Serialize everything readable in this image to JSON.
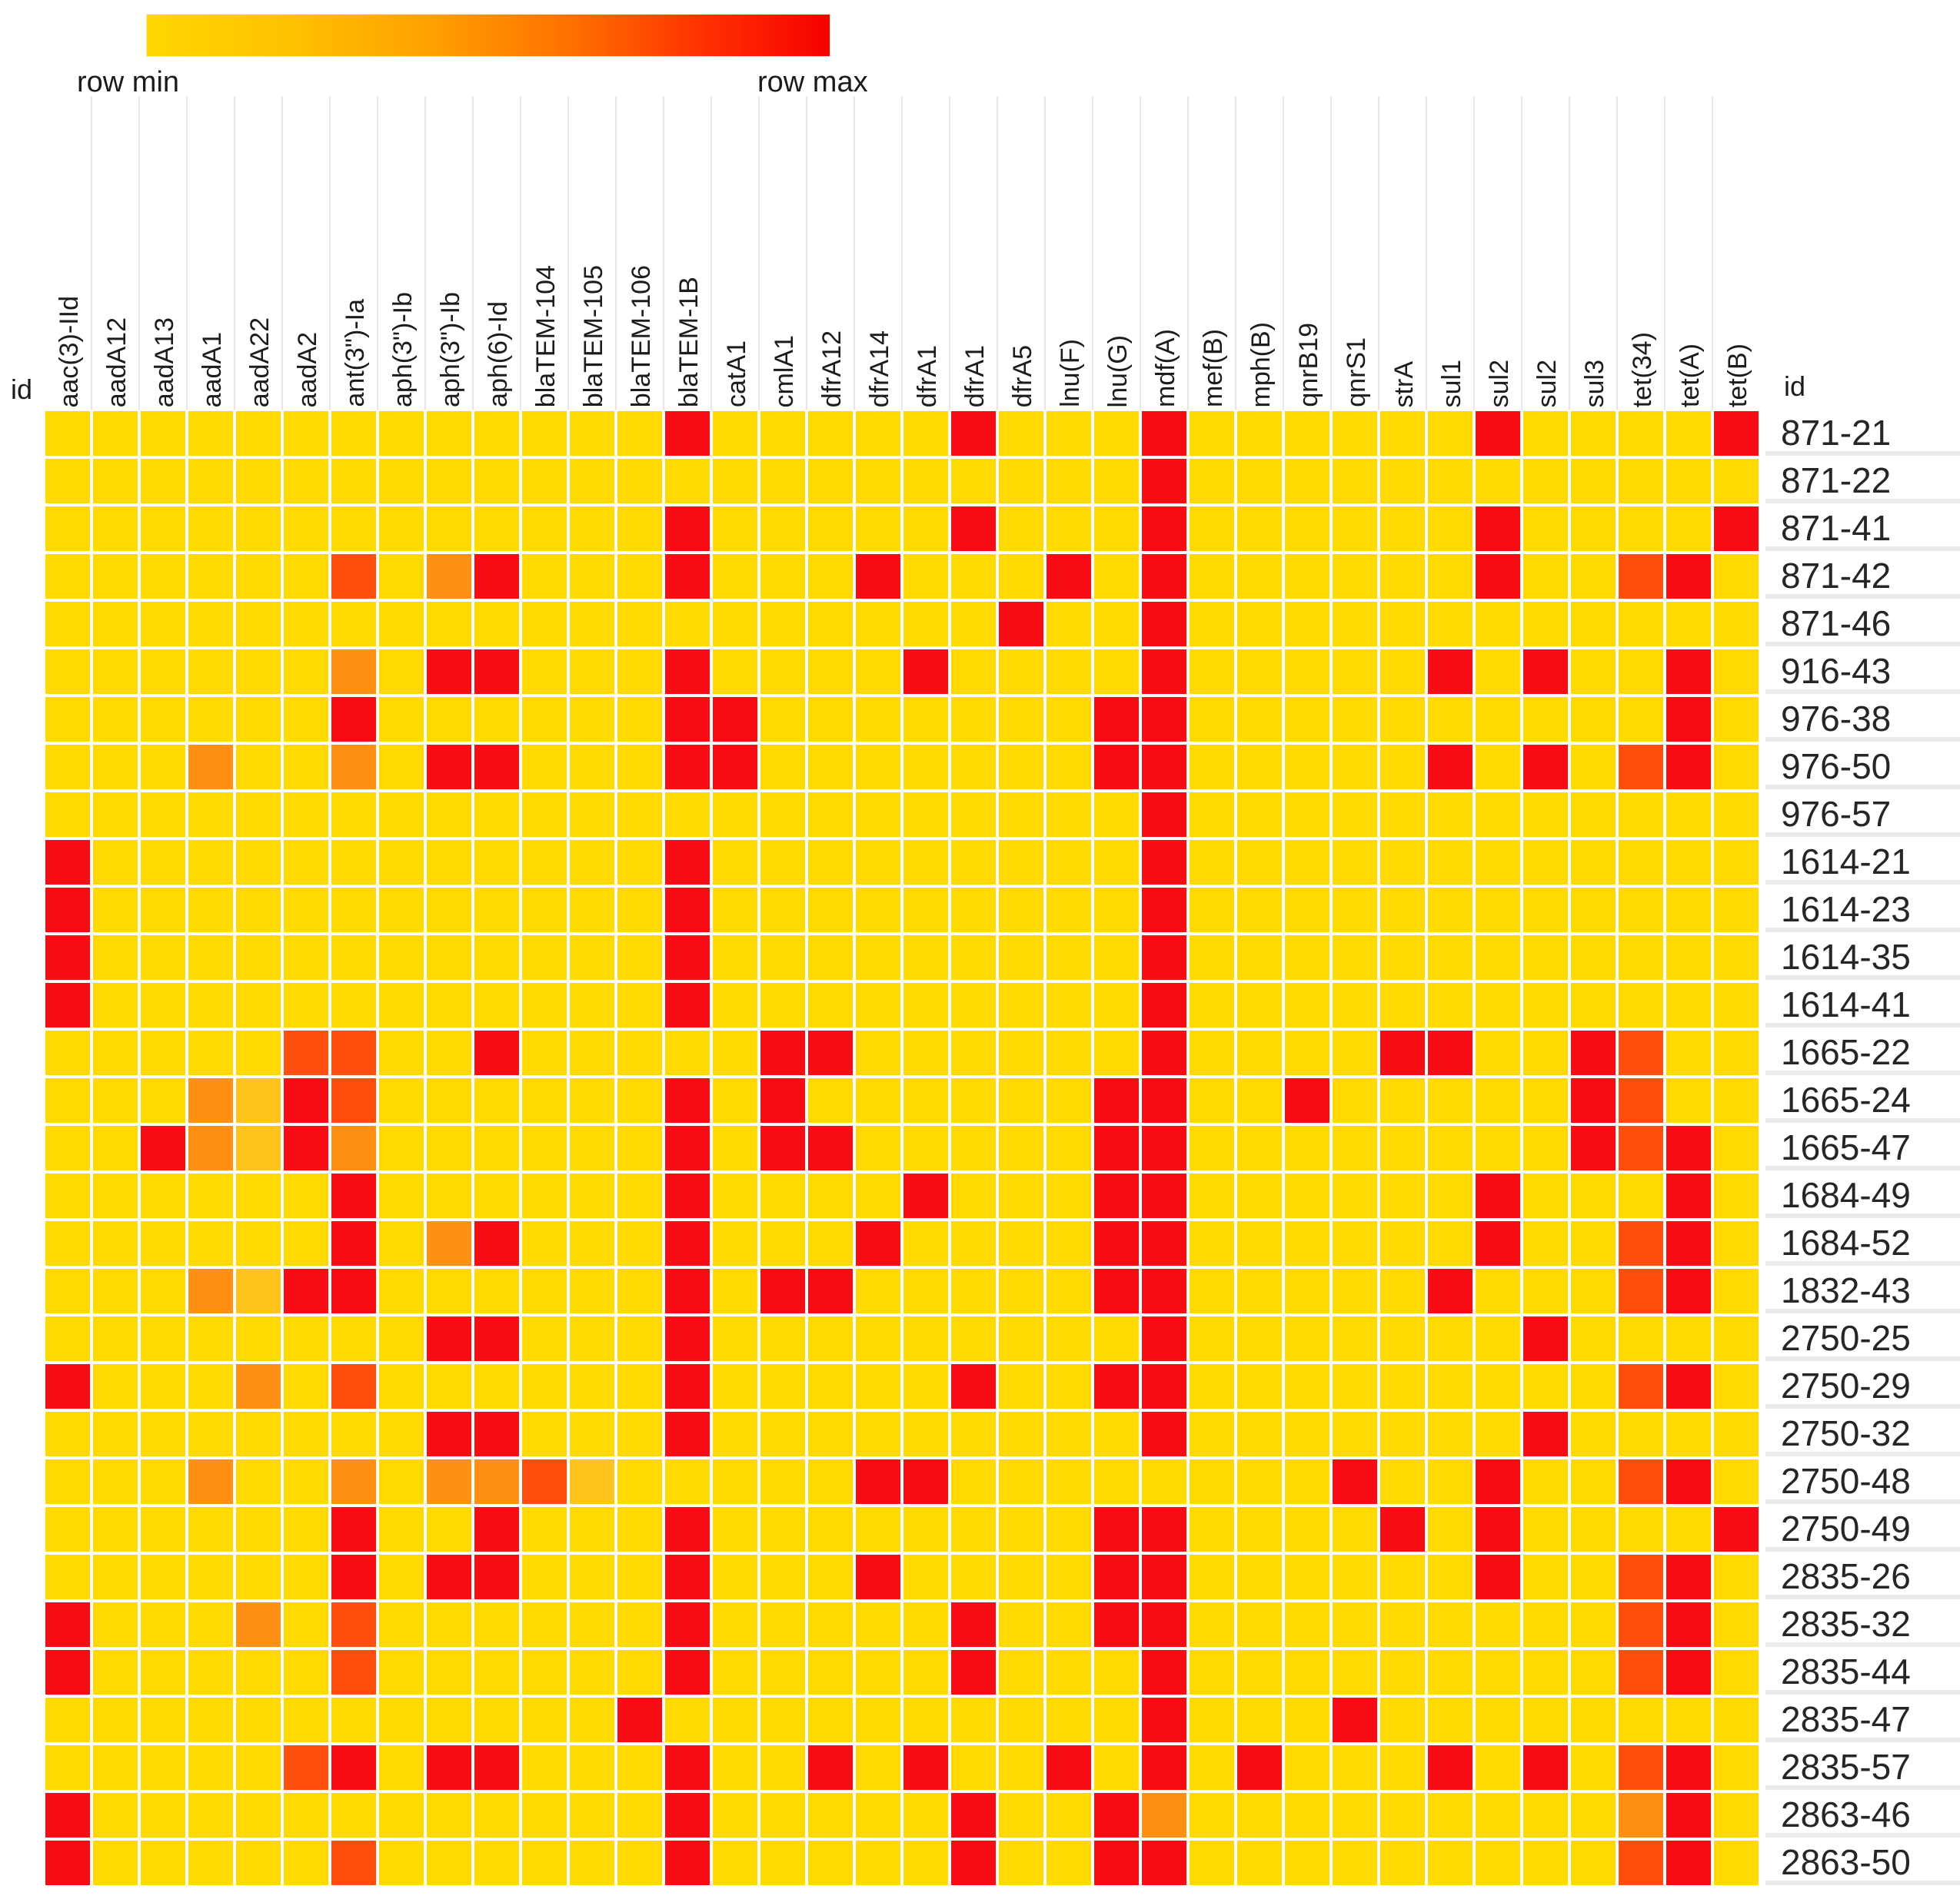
{
  "legend": {
    "min_label": "row min",
    "max_label": "row max"
  },
  "id_label": "id",
  "chart_data": {
    "type": "heatmap",
    "title": "",
    "legend_position": "top-left",
    "color_scale": "row min (yellow) to row max (red)",
    "level_colors": {
      "0": "#FFD901",
      "1": "#FFC41C",
      "2": "#FF9014",
      "3": "#FF4E0D",
      "4": "#F90D15"
    },
    "legend_gradient": [
      "#FFD800",
      "#FFA000",
      "#FF7000",
      "#FF3000",
      "#F60000"
    ],
    "columns": [
      "aac(3)-IId",
      "aadA12",
      "aadA13",
      "aadA1",
      "aadA22",
      "aadA2",
      "ant(3\")-Ia",
      "aph(3\")-Ib",
      "aph(3\")-Ib",
      "aph(6)-Id",
      "blaTEM-104",
      "blaTEM-105",
      "blaTEM-106",
      "blaTEM-1B",
      "catA1",
      "cmlA1",
      "dfrA12",
      "dfrA14",
      "dfrA1",
      "dfrA1",
      "dfrA5",
      "lnu(F)",
      "lnu(G)",
      "mdf(A)",
      "mef(B)",
      "mph(B)",
      "qnrB19",
      "qnrS1",
      "strA",
      "sul1",
      "sul2",
      "sul2",
      "sul3",
      "tet(34)",
      "tet(A)",
      "tet(B)"
    ],
    "rows": [
      "871-21",
      "871-22",
      "871-41",
      "871-42",
      "871-46",
      "916-43",
      "976-38",
      "976-50",
      "976-57",
      "1614-21",
      "1614-23",
      "1614-35",
      "1614-41",
      "1665-22",
      "1665-24",
      "1665-47",
      "1684-49",
      "1684-52",
      "1832-43",
      "2750-25",
      "2750-29",
      "2750-32",
      "2750-48",
      "2750-49",
      "2835-26",
      "2835-32",
      "2835-44",
      "2835-47",
      "2835-57",
      "2863-46",
      "2863-50"
    ],
    "matrix": [
      [
        0,
        0,
        0,
        0,
        0,
        0,
        0,
        0,
        0,
        0,
        0,
        0,
        0,
        4,
        0,
        0,
        0,
        0,
        0,
        4,
        0,
        0,
        0,
        4,
        0,
        0,
        0,
        0,
        0,
        0,
        4,
        0,
        0,
        0,
        0,
        4
      ],
      [
        0,
        0,
        0,
        0,
        0,
        0,
        0,
        0,
        0,
        0,
        0,
        0,
        0,
        0,
        0,
        0,
        0,
        0,
        0,
        0,
        0,
        0,
        0,
        4,
        0,
        0,
        0,
        0,
        0,
        0,
        0,
        0,
        0,
        0,
        0,
        0
      ],
      [
        0,
        0,
        0,
        0,
        0,
        0,
        0,
        0,
        0,
        0,
        0,
        0,
        0,
        4,
        0,
        0,
        0,
        0,
        0,
        4,
        0,
        0,
        0,
        4,
        0,
        0,
        0,
        0,
        0,
        0,
        4,
        0,
        0,
        0,
        0,
        4
      ],
      [
        0,
        0,
        0,
        0,
        0,
        0,
        3,
        0,
        2,
        4,
        0,
        0,
        0,
        4,
        0,
        0,
        0,
        4,
        0,
        0,
        0,
        4,
        0,
        4,
        0,
        0,
        0,
        0,
        0,
        0,
        4,
        0,
        0,
        3,
        4,
        0
      ],
      [
        0,
        0,
        0,
        0,
        0,
        0,
        0,
        0,
        0,
        0,
        0,
        0,
        0,
        0,
        0,
        0,
        0,
        0,
        0,
        0,
        4,
        0,
        0,
        4,
        0,
        0,
        0,
        0,
        0,
        0,
        0,
        0,
        0,
        0,
        0,
        0
      ],
      [
        0,
        0,
        0,
        0,
        0,
        0,
        2,
        0,
        4,
        4,
        0,
        0,
        0,
        4,
        0,
        0,
        0,
        0,
        4,
        0,
        0,
        0,
        0,
        4,
        0,
        0,
        0,
        0,
        0,
        4,
        0,
        4,
        0,
        0,
        4,
        0
      ],
      [
        0,
        0,
        0,
        0,
        0,
        0,
        4,
        0,
        0,
        0,
        0,
        0,
        0,
        4,
        4,
        0,
        0,
        0,
        0,
        0,
        0,
        0,
        4,
        4,
        0,
        0,
        0,
        0,
        0,
        0,
        0,
        0,
        0,
        0,
        4,
        0
      ],
      [
        0,
        0,
        0,
        2,
        0,
        0,
        2,
        0,
        4,
        4,
        0,
        0,
        0,
        4,
        4,
        0,
        0,
        0,
        0,
        0,
        0,
        0,
        4,
        4,
        0,
        0,
        0,
        0,
        0,
        4,
        0,
        4,
        0,
        3,
        4,
        0
      ],
      [
        0,
        0,
        0,
        0,
        0,
        0,
        0,
        0,
        0,
        0,
        0,
        0,
        0,
        0,
        0,
        0,
        0,
        0,
        0,
        0,
        0,
        0,
        0,
        4,
        0,
        0,
        0,
        0,
        0,
        0,
        0,
        0,
        0,
        0,
        0,
        0
      ],
      [
        4,
        0,
        0,
        0,
        0,
        0,
        0,
        0,
        0,
        0,
        0,
        0,
        0,
        4,
        0,
        0,
        0,
        0,
        0,
        0,
        0,
        0,
        0,
        4,
        0,
        0,
        0,
        0,
        0,
        0,
        0,
        0,
        0,
        0,
        0,
        0
      ],
      [
        4,
        0,
        0,
        0,
        0,
        0,
        0,
        0,
        0,
        0,
        0,
        0,
        0,
        4,
        0,
        0,
        0,
        0,
        0,
        0,
        0,
        0,
        0,
        4,
        0,
        0,
        0,
        0,
        0,
        0,
        0,
        0,
        0,
        0,
        0,
        0
      ],
      [
        4,
        0,
        0,
        0,
        0,
        0,
        0,
        0,
        0,
        0,
        0,
        0,
        0,
        4,
        0,
        0,
        0,
        0,
        0,
        0,
        0,
        0,
        0,
        4,
        0,
        0,
        0,
        0,
        0,
        0,
        0,
        0,
        0,
        0,
        0,
        0
      ],
      [
        4,
        0,
        0,
        0,
        0,
        0,
        0,
        0,
        0,
        0,
        0,
        0,
        0,
        4,
        0,
        0,
        0,
        0,
        0,
        0,
        0,
        0,
        0,
        4,
        0,
        0,
        0,
        0,
        0,
        0,
        0,
        0,
        0,
        0,
        0,
        0
      ],
      [
        0,
        0,
        0,
        0,
        0,
        3,
        3,
        0,
        0,
        4,
        0,
        0,
        0,
        0,
        0,
        4,
        4,
        0,
        0,
        0,
        0,
        0,
        0,
        4,
        0,
        0,
        0,
        0,
        4,
        4,
        0,
        0,
        4,
        3,
        0,
        0
      ],
      [
        0,
        0,
        0,
        2,
        1,
        4,
        3,
        0,
        0,
        0,
        0,
        0,
        0,
        4,
        0,
        4,
        0,
        0,
        0,
        0,
        0,
        0,
        4,
        4,
        0,
        0,
        4,
        0,
        0,
        0,
        0,
        0,
        4,
        3,
        0,
        0
      ],
      [
        0,
        0,
        4,
        2,
        1,
        4,
        2,
        0,
        0,
        0,
        0,
        0,
        0,
        4,
        0,
        4,
        4,
        0,
        0,
        0,
        0,
        0,
        4,
        4,
        0,
        0,
        0,
        0,
        0,
        0,
        0,
        0,
        4,
        3,
        4,
        0
      ],
      [
        0,
        0,
        0,
        0,
        0,
        0,
        4,
        0,
        0,
        0,
        0,
        0,
        0,
        4,
        0,
        0,
        0,
        0,
        4,
        0,
        0,
        0,
        4,
        4,
        0,
        0,
        0,
        0,
        0,
        0,
        4,
        0,
        0,
        0,
        4,
        0
      ],
      [
        0,
        0,
        0,
        0,
        0,
        0,
        4,
        0,
        2,
        4,
        0,
        0,
        0,
        4,
        0,
        0,
        0,
        4,
        0,
        0,
        0,
        0,
        4,
        4,
        0,
        0,
        0,
        0,
        0,
        0,
        4,
        0,
        0,
        3,
        4,
        0
      ],
      [
        0,
        0,
        0,
        2,
        1,
        4,
        4,
        0,
        0,
        0,
        0,
        0,
        0,
        4,
        0,
        4,
        4,
        0,
        0,
        0,
        0,
        0,
        4,
        4,
        0,
        0,
        0,
        0,
        0,
        4,
        0,
        0,
        0,
        3,
        4,
        0
      ],
      [
        0,
        0,
        0,
        0,
        0,
        0,
        0,
        0,
        4,
        4,
        0,
        0,
        0,
        4,
        0,
        0,
        0,
        0,
        0,
        0,
        0,
        0,
        0,
        4,
        0,
        0,
        0,
        0,
        0,
        0,
        0,
        4,
        0,
        0,
        0,
        0
      ],
      [
        4,
        0,
        0,
        0,
        2,
        0,
        3,
        0,
        0,
        0,
        0,
        0,
        0,
        4,
        0,
        0,
        0,
        0,
        0,
        4,
        0,
        0,
        4,
        4,
        0,
        0,
        0,
        0,
        0,
        0,
        0,
        0,
        0,
        3,
        4,
        0
      ],
      [
        0,
        0,
        0,
        0,
        0,
        0,
        0,
        0,
        4,
        4,
        0,
        0,
        0,
        4,
        0,
        0,
        0,
        0,
        0,
        0,
        0,
        0,
        0,
        4,
        0,
        0,
        0,
        0,
        0,
        0,
        0,
        4,
        0,
        0,
        0,
        0
      ],
      [
        0,
        0,
        0,
        2,
        0,
        0,
        2,
        0,
        2,
        2,
        3,
        1,
        0,
        0,
        0,
        0,
        0,
        4,
        4,
        0,
        0,
        0,
        0,
        0,
        0,
        0,
        0,
        4,
        0,
        0,
        4,
        0,
        0,
        3,
        4,
        0
      ],
      [
        0,
        0,
        0,
        0,
        0,
        0,
        4,
        0,
        0,
        4,
        0,
        0,
        0,
        4,
        0,
        0,
        0,
        0,
        0,
        0,
        0,
        0,
        4,
        4,
        0,
        0,
        0,
        0,
        4,
        0,
        4,
        0,
        0,
        0,
        0,
        4
      ],
      [
        0,
        0,
        0,
        0,
        0,
        0,
        4,
        0,
        4,
        4,
        0,
        0,
        0,
        4,
        0,
        0,
        0,
        4,
        0,
        0,
        0,
        0,
        4,
        4,
        0,
        0,
        0,
        0,
        0,
        0,
        4,
        0,
        0,
        3,
        4,
        0
      ],
      [
        4,
        0,
        0,
        0,
        2,
        0,
        3,
        0,
        0,
        0,
        0,
        0,
        0,
        4,
        0,
        0,
        0,
        0,
        0,
        4,
        0,
        0,
        4,
        4,
        0,
        0,
        0,
        0,
        0,
        0,
        0,
        0,
        0,
        3,
        4,
        0
      ],
      [
        4,
        0,
        0,
        0,
        0,
        0,
        3,
        0,
        0,
        0,
        0,
        0,
        0,
        4,
        0,
        0,
        0,
        0,
        0,
        4,
        0,
        0,
        0,
        4,
        0,
        0,
        0,
        0,
        0,
        0,
        0,
        0,
        0,
        3,
        4,
        0
      ],
      [
        0,
        0,
        0,
        0,
        0,
        0,
        0,
        0,
        0,
        0,
        0,
        0,
        4,
        0,
        0,
        0,
        0,
        0,
        0,
        0,
        0,
        0,
        0,
        4,
        0,
        0,
        0,
        4,
        0,
        0,
        0,
        0,
        0,
        0,
        0,
        0
      ],
      [
        0,
        0,
        0,
        0,
        0,
        3,
        4,
        0,
        4,
        4,
        0,
        0,
        0,
        4,
        0,
        0,
        4,
        0,
        4,
        0,
        0,
        4,
        0,
        4,
        0,
        4,
        0,
        0,
        0,
        4,
        0,
        4,
        0,
        3,
        4,
        0
      ],
      [
        4,
        0,
        0,
        0,
        0,
        0,
        0,
        0,
        0,
        0,
        0,
        0,
        0,
        4,
        0,
        0,
        0,
        0,
        0,
        4,
        0,
        0,
        4,
        2,
        0,
        0,
        0,
        0,
        0,
        0,
        0,
        0,
        0,
        2,
        4,
        0
      ],
      [
        4,
        0,
        0,
        0,
        0,
        0,
        3,
        0,
        0,
        0,
        0,
        0,
        0,
        4,
        0,
        0,
        0,
        0,
        0,
        4,
        0,
        0,
        4,
        4,
        0,
        0,
        0,
        0,
        0,
        0,
        0,
        0,
        0,
        3,
        4,
        0
      ]
    ]
  }
}
